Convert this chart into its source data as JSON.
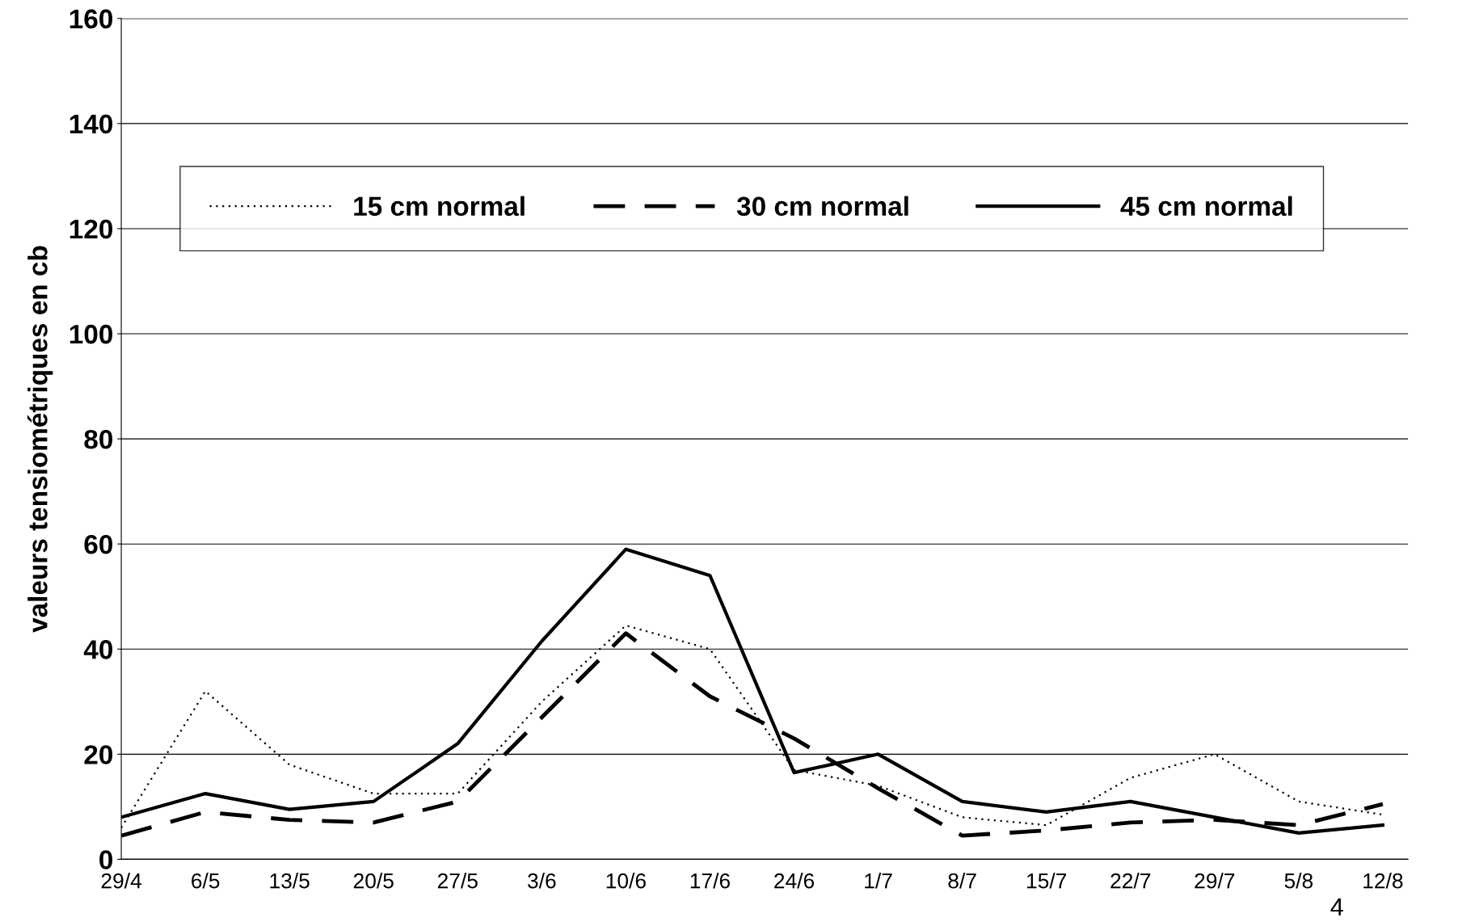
{
  "chart_data": {
    "type": "line",
    "ylabel": "valeurs tensiométriques en cb",
    "categories": [
      "29/4",
      "6/5",
      "13/5",
      "20/5",
      "27/5",
      "3/6",
      "10/6",
      "17/6",
      "24/6",
      "1/7",
      "8/7",
      "15/7",
      "22/7",
      "29/7",
      "5/8",
      "12/8"
    ],
    "series": [
      {
        "name": "15 cm normal",
        "color": "#000000",
        "line_style": "dotted",
        "values": [
          6,
          32,
          18,
          12.5,
          12.5,
          30,
          44.5,
          40,
          17,
          14,
          8,
          6.5,
          15.5,
          20,
          11,
          8.5
        ]
      },
      {
        "name": "30 cm normal",
        "color": "#000000",
        "line_style": "dashed",
        "values": [
          4.5,
          9,
          7.5,
          7,
          11,
          27,
          43,
          31,
          23,
          13.5,
          4.5,
          5.5,
          7,
          7.5,
          6.5,
          10.5
        ]
      },
      {
        "name": "45 cm normal",
        "color": "#000000",
        "line_style": "solid",
        "values": [
          8,
          12.5,
          9.5,
          11,
          22,
          41.5,
          59,
          54,
          16.5,
          20,
          11,
          9,
          11,
          8,
          5,
          6.5
        ]
      }
    ],
    "ylim": [
      0,
      160
    ],
    "yticks": [
      0,
      20,
      40,
      60,
      80,
      100,
      120,
      140,
      160
    ],
    "grid": "y",
    "legend": "top",
    "marker": "none",
    "annotations": [
      "4"
    ]
  }
}
